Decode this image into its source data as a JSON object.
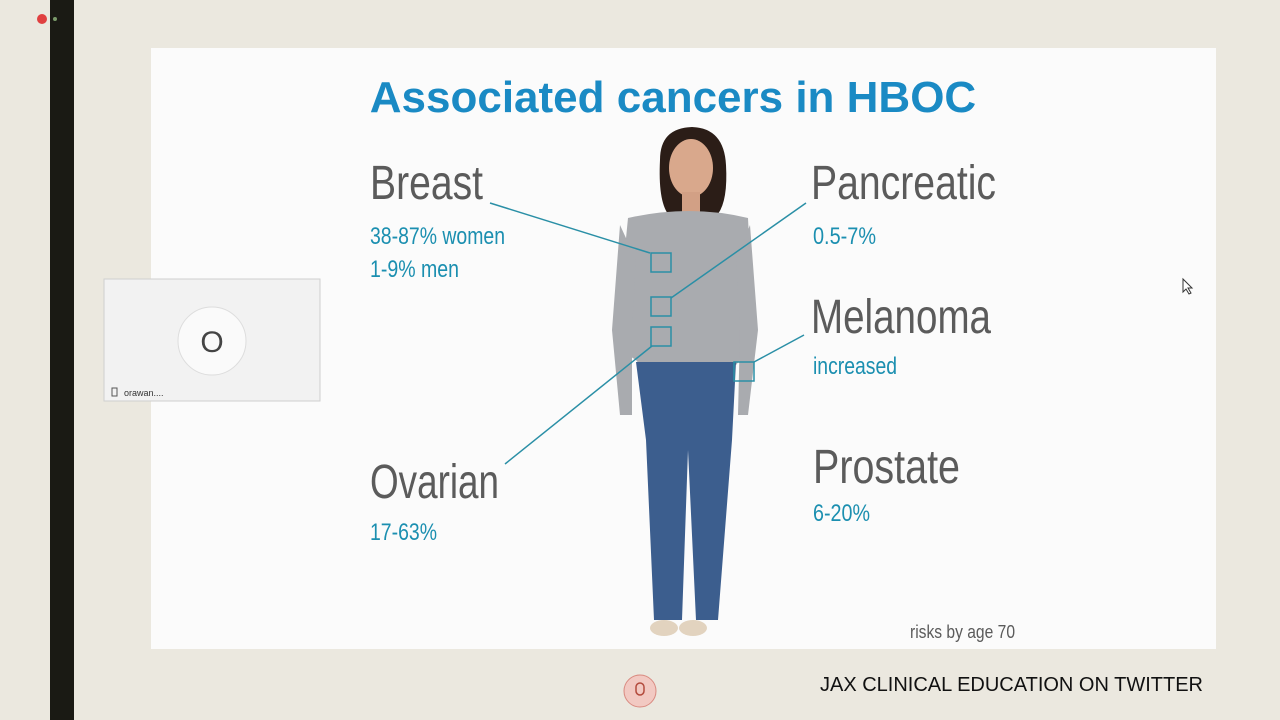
{
  "slide": {
    "title": "Associated cancers in HBOC",
    "sections": [
      {
        "name": "Breast",
        "risks": [
          "38-87% women",
          "1-9% men"
        ]
      },
      {
        "name": "Pancreatic",
        "risks": [
          "0.5-7%"
        ]
      },
      {
        "name": "Melanoma",
        "risks": [
          "increased"
        ]
      },
      {
        "name": "Ovarian",
        "risks": [
          "17-63%"
        ]
      },
      {
        "name": "Prostate",
        "risks": [
          "6-20%"
        ]
      }
    ],
    "footnote": "risks by age 70"
  },
  "participant": {
    "initial": "O",
    "name": "orawan...."
  },
  "footer": "JAX CLINICAL EDUCATION ON TWITTER"
}
